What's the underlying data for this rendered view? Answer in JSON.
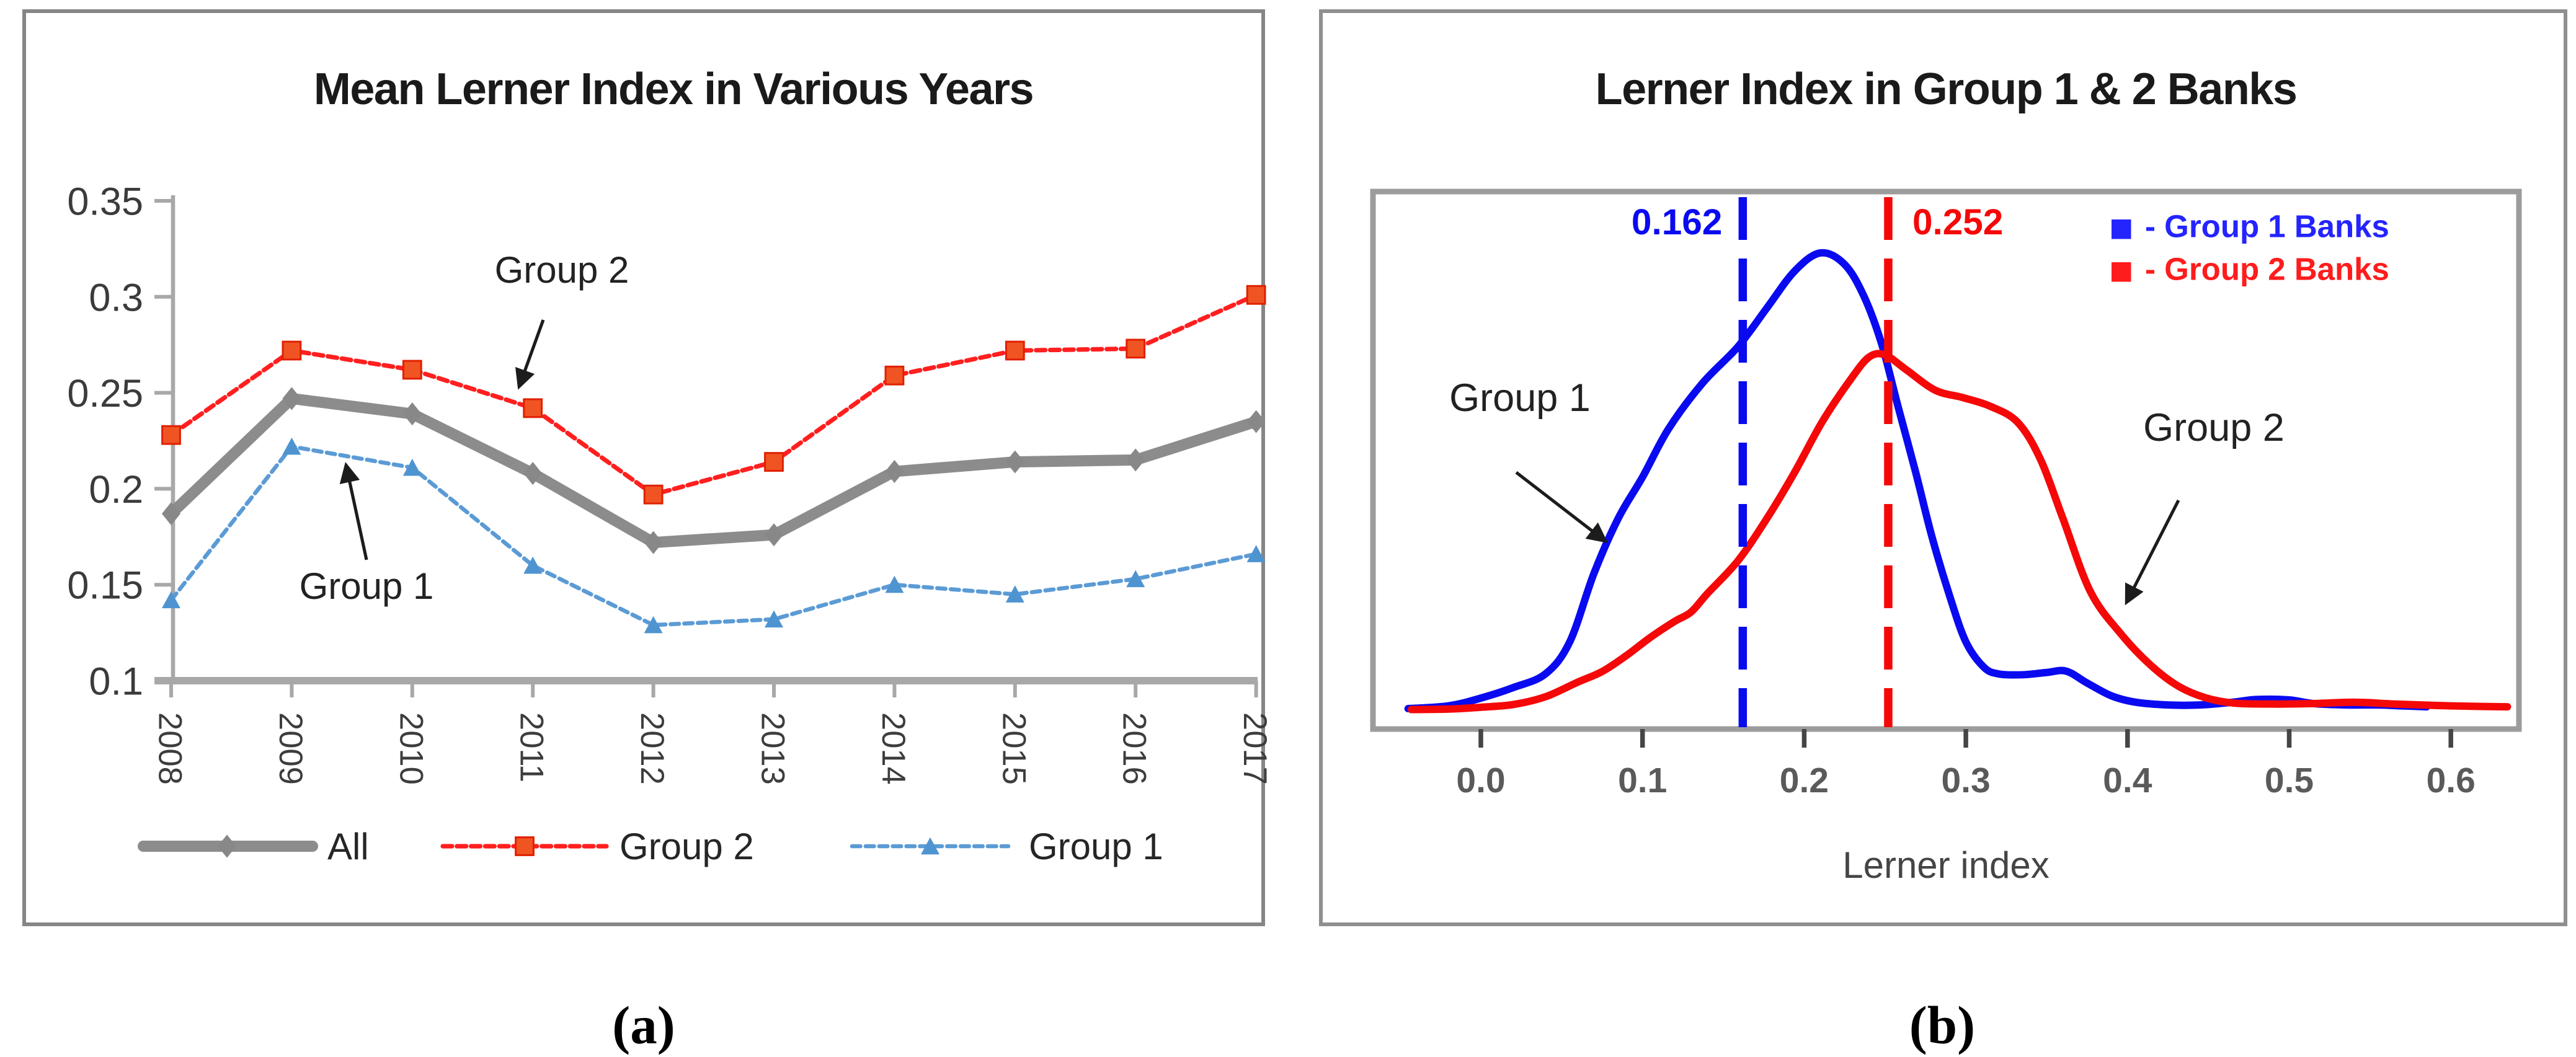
{
  "figure": {
    "caption_a": "(a)",
    "caption_b": "(b)"
  },
  "chart_data": [
    {
      "id": "chart-a",
      "type": "line",
      "title": "Mean Lerner Index in Various Years",
      "categories": [
        "2008",
        "2009",
        "2010",
        "2011",
        "2012",
        "2013",
        "2014",
        "2015",
        "2016",
        "2017"
      ],
      "y_tick_labels": [
        "0.35",
        "0.3",
        "0.25",
        "0.2",
        "0.15",
        "0.1"
      ],
      "y_ticks": [
        0.35,
        0.3,
        0.25,
        0.2,
        0.15,
        0.1
      ],
      "ylim": [
        0.1,
        0.35
      ],
      "grid": false,
      "legend_position": "bottom",
      "series": [
        {
          "name": "Group 1",
          "color": "#5B9BD5",
          "marker": "triangle",
          "marker_color": "#4E94D0",
          "line_width": 2.2,
          "dash": "4.5 2.8",
          "values": [
            0.142,
            0.222,
            0.211,
            0.16,
            0.129,
            0.132,
            0.15,
            0.145,
            0.153,
            0.166
          ]
        },
        {
          "name": "Group 2",
          "color": "#FF1F1F",
          "marker": "square",
          "marker_color": "#F05423",
          "line_width": 2.4,
          "dash": "5 2.6",
          "values": [
            0.228,
            0.272,
            0.262,
            0.242,
            0.197,
            0.214,
            0.259,
            0.272,
            0.273,
            0.301
          ]
        },
        {
          "name": "All",
          "color": "#8C8C8C",
          "marker": "diamond",
          "marker_color": "#888888",
          "line_width": 6,
          "dash": "",
          "values": [
            0.187,
            0.247,
            0.239,
            0.208,
            0.172,
            0.176,
            0.209,
            0.214,
            0.215,
            0.235
          ]
        }
      ],
      "legend": [
        {
          "label": "All",
          "series": "All"
        },
        {
          "label": "Group 2",
          "series": "Group 2"
        },
        {
          "label": "Group 1",
          "series": "Group 1"
        }
      ],
      "annotations": [
        {
          "text": "Group 2",
          "tx": 288,
          "ty": 145,
          "x1": 278,
          "y1": 165,
          "x2": 265,
          "y2": 201
        },
        {
          "text": "Group 1",
          "tx": 183,
          "ty": 315,
          "x1": 183,
          "y1": 294,
          "x2": 172,
          "y2": 243
        }
      ]
    },
    {
      "id": "chart-b",
      "type": "density",
      "title": "Lerner Index in Group 1 & 2 Banks",
      "xlabel": "Lerner index",
      "x_tick_labels": [
        "0.0",
        "0.1",
        "0.2",
        "0.3",
        "0.4",
        "0.5",
        "0.6"
      ],
      "x_ticks": [
        0.0,
        0.1,
        0.2,
        0.3,
        0.4,
        0.5,
        0.6
      ],
      "xlim": [
        -0.071,
        0.642
      ],
      "grid": false,
      "legend_position": "top-right",
      "vlines": [
        {
          "value": 0.162,
          "label": "0.162",
          "color": "#0a0af0"
        },
        {
          "value": 0.252,
          "label": "0.252",
          "color": "#f50808"
        }
      ],
      "legend": [
        {
          "label": "- Group 1 Banks",
          "color": "#2424ff"
        },
        {
          "label": "- Group 2 Banks",
          "color": "#ff1c1c"
        }
      ],
      "series": [
        {
          "name": "Group 1 Banks",
          "color": "#0a0af0",
          "points": [
            [
              -0.045,
              0.004
            ],
            [
              -0.02,
              0.01
            ],
            [
              0.0,
              0.027
            ],
            [
              0.02,
              0.05
            ],
            [
              0.04,
              0.08
            ],
            [
              0.055,
              0.15
            ],
            [
              0.07,
              0.3
            ],
            [
              0.085,
              0.42
            ],
            [
              0.1,
              0.51
            ],
            [
              0.116,
              0.615
            ],
            [
              0.137,
              0.715
            ],
            [
              0.159,
              0.795
            ],
            [
              0.177,
              0.88
            ],
            [
              0.194,
              0.96
            ],
            [
              0.21,
              1.0
            ],
            [
              0.225,
              0.975
            ],
            [
              0.237,
              0.905
            ],
            [
              0.248,
              0.8
            ],
            [
              0.258,
              0.665
            ],
            [
              0.269,
              0.52
            ],
            [
              0.279,
              0.38
            ],
            [
              0.29,
              0.25
            ],
            [
              0.3,
              0.15
            ],
            [
              0.311,
              0.095
            ],
            [
              0.32,
              0.08
            ],
            [
              0.335,
              0.078
            ],
            [
              0.35,
              0.083
            ],
            [
              0.362,
              0.086
            ],
            [
              0.375,
              0.06
            ],
            [
              0.39,
              0.032
            ],
            [
              0.405,
              0.018
            ],
            [
              0.425,
              0.012
            ],
            [
              0.445,
              0.012
            ],
            [
              0.465,
              0.018
            ],
            [
              0.48,
              0.024
            ],
            [
              0.5,
              0.023
            ],
            [
              0.515,
              0.015
            ],
            [
              0.535,
              0.012
            ],
            [
              0.555,
              0.012
            ],
            [
              0.57,
              0.01
            ],
            [
              0.585,
              0.008
            ]
          ]
        },
        {
          "name": "Group 2 Banks",
          "color": "#f50808",
          "points": [
            [
              -0.043,
              0.002
            ],
            [
              -0.02,
              0.003
            ],
            [
              0.0,
              0.007
            ],
            [
              0.02,
              0.013
            ],
            [
              0.04,
              0.03
            ],
            [
              0.06,
              0.062
            ],
            [
              0.075,
              0.085
            ],
            [
              0.09,
              0.12
            ],
            [
              0.105,
              0.16
            ],
            [
              0.12,
              0.195
            ],
            [
              0.13,
              0.215
            ],
            [
              0.14,
              0.255
            ],
            [
              0.159,
              0.327
            ],
            [
              0.177,
              0.42
            ],
            [
              0.194,
              0.52
            ],
            [
              0.211,
              0.63
            ],
            [
              0.228,
              0.72
            ],
            [
              0.24,
              0.772
            ],
            [
              0.25,
              0.777
            ],
            [
              0.263,
              0.745
            ],
            [
              0.281,
              0.7
            ],
            [
              0.298,
              0.684
            ],
            [
              0.315,
              0.665
            ],
            [
              0.332,
              0.63
            ],
            [
              0.346,
              0.55
            ],
            [
              0.36,
              0.42
            ],
            [
              0.377,
              0.26
            ],
            [
              0.396,
              0.167
            ],
            [
              0.414,
              0.1
            ],
            [
              0.431,
              0.054
            ],
            [
              0.448,
              0.028
            ],
            [
              0.466,
              0.016
            ],
            [
              0.49,
              0.014
            ],
            [
              0.515,
              0.015
            ],
            [
              0.54,
              0.018
            ],
            [
              0.565,
              0.014
            ],
            [
              0.59,
              0.011
            ],
            [
              0.615,
              0.009
            ],
            [
              0.635,
              0.008
            ]
          ]
        }
      ],
      "annotations": [
        {
          "text": "Group 1",
          "tx": 106,
          "ty": 214,
          "x1": 104,
          "y1": 247,
          "x2": 152,
          "y2": 284
        },
        {
          "text": "Group 2",
          "tx": 479,
          "ty": 230,
          "x1": 460,
          "y1": 262,
          "x2": 432,
          "y2": 317
        }
      ]
    }
  ]
}
